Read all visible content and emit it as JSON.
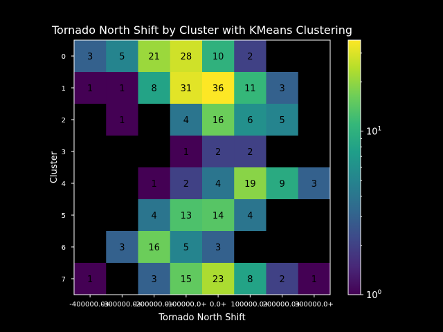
{
  "chart_data": {
    "type": "heatmap",
    "title": "Tornado North Shift by Cluster with KMeans Clustering",
    "xlabel": "Tornado North Shift",
    "ylabel": "Cluster",
    "x_categories": [
      "-400000.0+",
      "-300000.0+",
      "-200000.0+",
      "-100000.0+",
      "0.0+",
      "100000.0+",
      "200000.0+",
      "300000.0+"
    ],
    "y_categories": [
      "0",
      "1",
      "2",
      "3",
      "4",
      "5",
      "6",
      "7"
    ],
    "values": [
      [
        3,
        5,
        21,
        28,
        10,
        2,
        null,
        null
      ],
      [
        1,
        1,
        8,
        31,
        36,
        11,
        3,
        null
      ],
      [
        null,
        1,
        null,
        4,
        16,
        6,
        5,
        null
      ],
      [
        null,
        null,
        null,
        1,
        2,
        2,
        null,
        null
      ],
      [
        null,
        null,
        1,
        2,
        4,
        19,
        9,
        3
      ],
      [
        null,
        null,
        4,
        13,
        14,
        4,
        null,
        null
      ],
      [
        null,
        3,
        16,
        5,
        3,
        null,
        null,
        null
      ],
      [
        1,
        null,
        3,
        15,
        23,
        8,
        2,
        1
      ]
    ],
    "colorbar": {
      "scale": "log",
      "range": [
        1,
        36
      ],
      "colormap": "viridis",
      "tick_labels": [
        {
          "value": 1,
          "base": "10",
          "exp": "0"
        },
        {
          "value": 10,
          "base": "10",
          "exp": "1"
        }
      ]
    },
    "empty_color": "#000000"
  }
}
